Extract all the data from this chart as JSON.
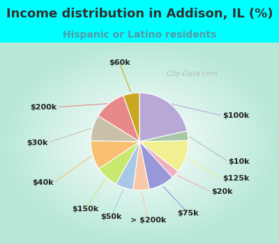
{
  "title": "Income distribution in Addison, IL (%)",
  "subtitle": "Hispanic or Latino residents",
  "bg_cyan": "#00ffff",
  "bg_chart_center": "#ffffff",
  "bg_chart_edge": "#b8e8d8",
  "slices": [
    {
      "label": "$100k",
      "value": 20.0,
      "color": "#b8a8d8"
    },
    {
      "label": "$10k",
      "value": 3.0,
      "color": "#a8c8a8"
    },
    {
      "label": "$125k",
      "value": 10.0,
      "color": "#f0f090"
    },
    {
      "label": "$20k",
      "value": 2.5,
      "color": "#f0b0c0"
    },
    {
      "label": "$75k",
      "value": 8.0,
      "color": "#9898d8"
    },
    {
      "label": "> $200k",
      "value": 5.0,
      "color": "#f8c8a8"
    },
    {
      "label": "$50k",
      "value": 5.5,
      "color": "#a8c8e8"
    },
    {
      "label": "$150k",
      "value": 7.0,
      "color": "#c8e870"
    },
    {
      "label": "$40k",
      "value": 9.0,
      "color": "#f8c070"
    },
    {
      "label": "$30k",
      "value": 8.0,
      "color": "#c8c0a8"
    },
    {
      "label": "$200k",
      "value": 10.0,
      "color": "#e88888"
    },
    {
      "label": "$60k",
      "value": 5.0,
      "color": "#c8a820"
    }
  ],
  "watermark": "City-Data.com",
  "title_fontsize": 13,
  "subtitle_fontsize": 10,
  "label_fontsize": 8,
  "title_color": "#303030",
  "subtitle_color": "#5599aa"
}
